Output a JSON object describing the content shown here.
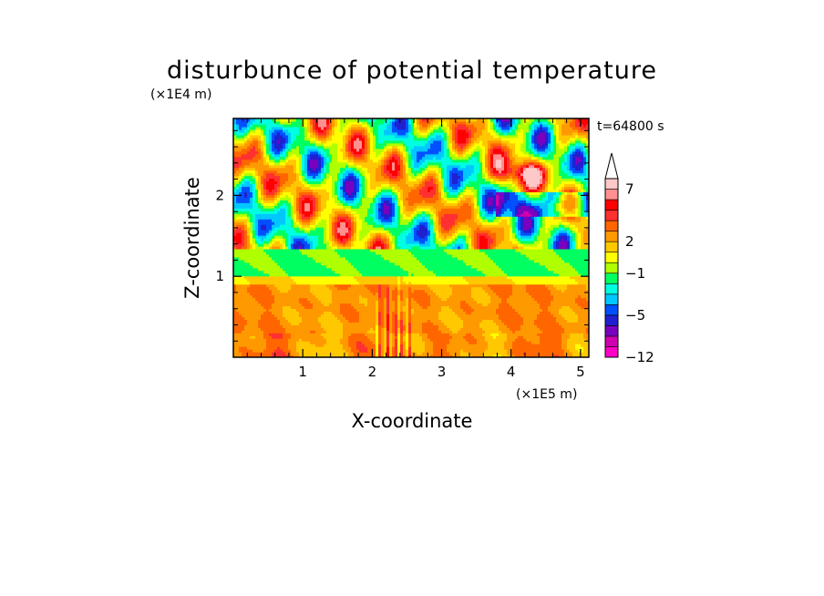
{
  "chart_data": {
    "type": "heatmap",
    "title": "disturbunce of potential temperature",
    "xlabel": "X-coordinate",
    "ylabel": "Z-coordinate",
    "x_scale_label": "(×1E5 m)",
    "y_scale_label": "(×1E4 m)",
    "time_label": "t=64800 s",
    "xlim": [
      0,
      5.12
    ],
    "ylim": [
      0,
      2.95
    ],
    "x_ticks": [
      {
        "value": 1,
        "label": "1"
      },
      {
        "value": 2,
        "label": "2"
      },
      {
        "value": 3,
        "label": "3"
      },
      {
        "value": 4,
        "label": "4"
      },
      {
        "value": 5,
        "label": "5"
      }
    ],
    "y_ticks": [
      {
        "value": 1,
        "label": "1"
      },
      {
        "value": 2,
        "label": "2"
      }
    ],
    "colorbar": {
      "levels": [
        -12,
        -10,
        -8,
        -6,
        -5,
        -4,
        -3,
        -2,
        -1,
        0,
        1,
        2,
        3,
        4,
        5,
        6,
        7,
        8,
        9,
        10
      ],
      "colors": [
        "#ff00c8",
        "#d000b0",
        "#7a00c0",
        "#2020d0",
        "#0050ff",
        "#00c8ff",
        "#00ffe0",
        "#00ff60",
        "#b0ff00",
        "#ffff00",
        "#ffc800",
        "#ff9900",
        "#ff6600",
        "#ff3030",
        "#ff0000",
        "#ff9090",
        "#ffc8c8"
      ],
      "labels": [
        {
          "value": -12,
          "label": "−12"
        },
        {
          "value": -5,
          "label": "−5"
        },
        {
          "value": -1,
          "label": "−1"
        },
        {
          "value": 2,
          "label": "2"
        },
        {
          "value": 7,
          "label": "7"
        }
      ],
      "extend": "max"
    },
    "grid": false
  }
}
